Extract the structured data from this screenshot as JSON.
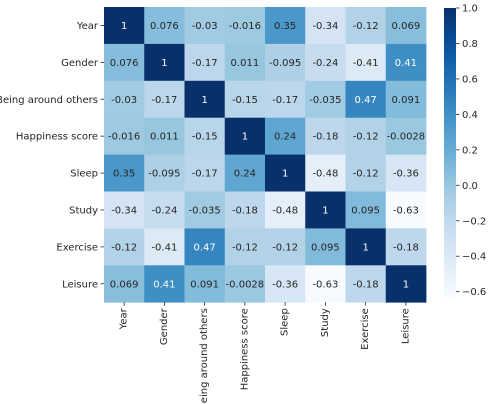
{
  "chart_data": {
    "type": "heatmap",
    "title": "",
    "xlabel": "",
    "ylabel": "",
    "row_labels": [
      "Year",
      "Gender",
      "Being around others",
      "Happiness score",
      "Sleep",
      "Study",
      "Exercise",
      "Leisure"
    ],
    "col_labels": [
      "Year",
      "Gender",
      "Being around others",
      "Happiness score",
      "Sleep",
      "Study",
      "Exercise",
      "Leisure"
    ],
    "values": [
      [
        1,
        0.076,
        -0.03,
        -0.016,
        0.35,
        -0.34,
        -0.12,
        0.069
      ],
      [
        0.076,
        1,
        -0.17,
        0.011,
        -0.095,
        -0.24,
        -0.41,
        0.41
      ],
      [
        -0.03,
        -0.17,
        1,
        -0.15,
        -0.17,
        -0.035,
        0.47,
        0.091
      ],
      [
        -0.016,
        0.011,
        -0.15,
        1,
        0.24,
        -0.18,
        -0.12,
        -0.0028
      ],
      [
        0.35,
        -0.095,
        -0.17,
        0.24,
        1,
        -0.48,
        -0.12,
        -0.36
      ],
      [
        -0.34,
        -0.24,
        -0.035,
        -0.18,
        -0.48,
        1,
        0.095,
        -0.63
      ],
      [
        -0.12,
        -0.41,
        0.47,
        -0.12,
        -0.12,
        0.095,
        1,
        -0.18
      ],
      [
        0.069,
        0.41,
        0.091,
        -0.0028,
        -0.36,
        -0.63,
        -0.18,
        1
      ]
    ],
    "annotations": [
      [
        "1",
        "0.076",
        "-0.03",
        "-0.016",
        "0.35",
        "-0.34",
        "-0.12",
        "0.069"
      ],
      [
        "0.076",
        "1",
        "-0.17",
        "0.011",
        "-0.095",
        "-0.24",
        "-0.41",
        "0.41"
      ],
      [
        "-0.03",
        "-0.17",
        "1",
        "-0.15",
        "-0.17",
        "-0.035",
        "0.47",
        "0.091"
      ],
      [
        "-0.016",
        "0.011",
        "-0.15",
        "1",
        "0.24",
        "-0.18",
        "-0.12",
        "-0.0028"
      ],
      [
        "0.35",
        "-0.095",
        "-0.17",
        "0.24",
        "1",
        "-0.48",
        "-0.12",
        "-0.36"
      ],
      [
        "-0.34",
        "-0.24",
        "-0.035",
        "-0.18",
        "-0.48",
        "1",
        "0.095",
        "-0.63"
      ],
      [
        "-0.12",
        "-0.41",
        "0.47",
        "-0.12",
        "-0.12",
        "0.095",
        "1",
        "-0.18"
      ],
      [
        "0.069",
        "0.41",
        "0.091",
        "-0.0028",
        "-0.36",
        "-0.63",
        "-0.18",
        "1"
      ]
    ],
    "colormap": "Blues",
    "vmin": -0.63,
    "vmax": 1.0,
    "colorbar_ticks": [
      1.0,
      0.8,
      0.6,
      0.4,
      0.2,
      0.0,
      -0.2,
      -0.4,
      -0.6
    ],
    "colorbar_tick_labels": [
      "1.0",
      "0.8",
      "0.6",
      "0.4",
      "0.2",
      "0.0",
      "−0.2",
      "−0.4",
      "−0.6"
    ],
    "legend": "colorbar-right",
    "grid": false
  }
}
